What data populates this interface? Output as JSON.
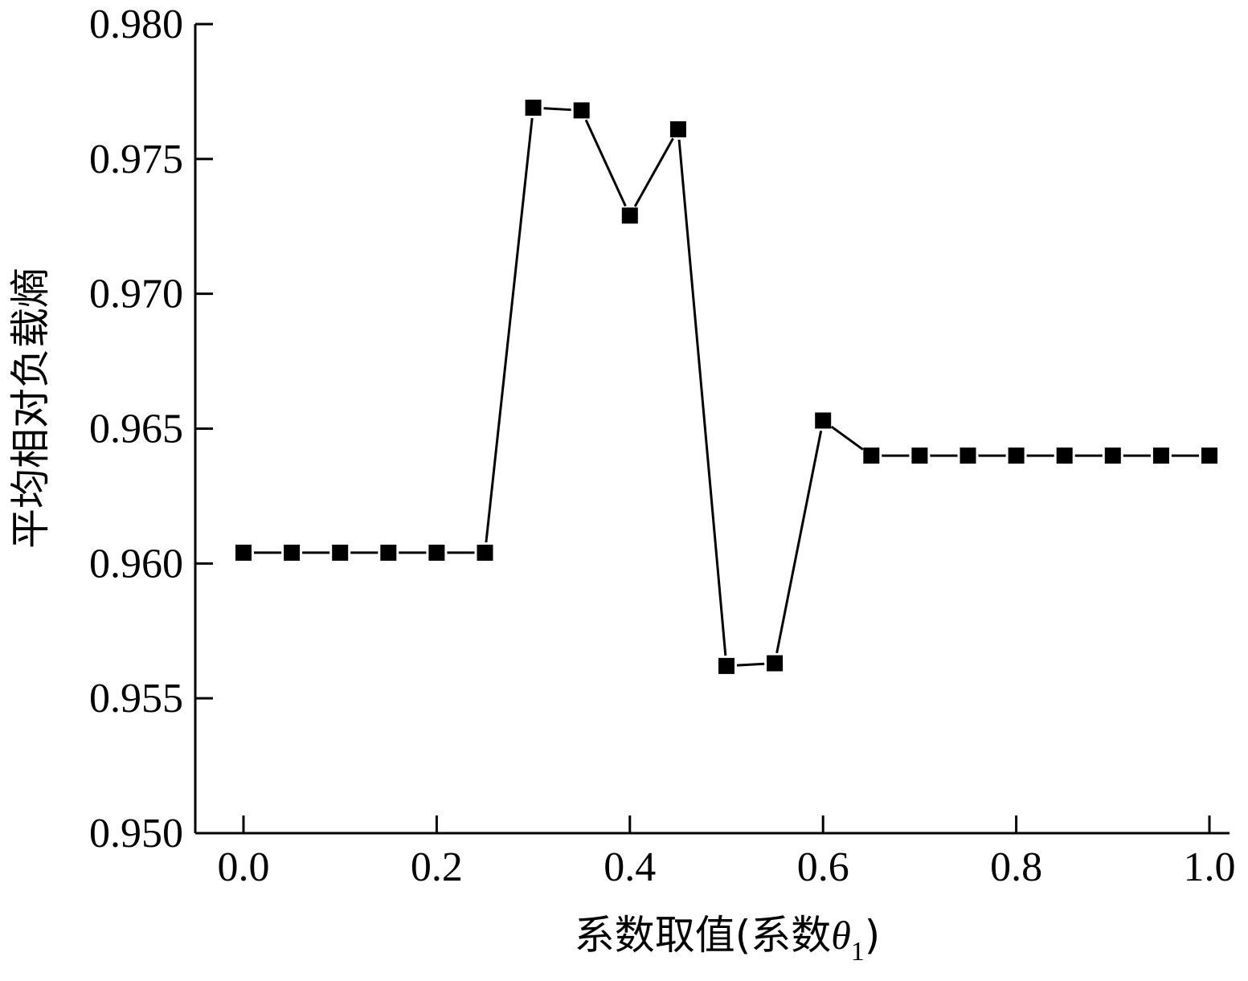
{
  "chart_data": {
    "type": "line",
    "xlabel": {
      "prefix": "系数取值(系数",
      "symbol": "θ",
      "subscript": "1",
      "suffix": ")"
    },
    "ylabel": "平均相对负载熵",
    "xlim": [
      0.0,
      1.0
    ],
    "ylim": [
      0.95,
      0.98
    ],
    "x_ticks": [
      "0.0",
      "0.2",
      "0.4",
      "0.6",
      "0.8",
      "1.0"
    ],
    "y_ticks": [
      "0.950",
      "0.955",
      "0.960",
      "0.965",
      "0.970",
      "0.975",
      "0.980"
    ],
    "marker": "square",
    "color": "#000000",
    "grid": false,
    "series": [
      {
        "x": [
          0.0,
          0.05,
          0.1,
          0.15,
          0.2,
          0.25,
          0.3,
          0.35,
          0.4,
          0.45,
          0.5,
          0.55,
          0.6,
          0.65,
          0.7,
          0.75,
          0.8,
          0.85,
          0.9,
          0.95,
          1.0
        ],
        "y": [
          0.9604,
          0.9604,
          0.9604,
          0.9604,
          0.9604,
          0.9604,
          0.9769,
          0.9768,
          0.9729,
          0.9761,
          0.9562,
          0.9563,
          0.9653,
          0.964,
          0.964,
          0.964,
          0.964,
          0.964,
          0.964,
          0.964,
          0.964
        ]
      }
    ]
  }
}
